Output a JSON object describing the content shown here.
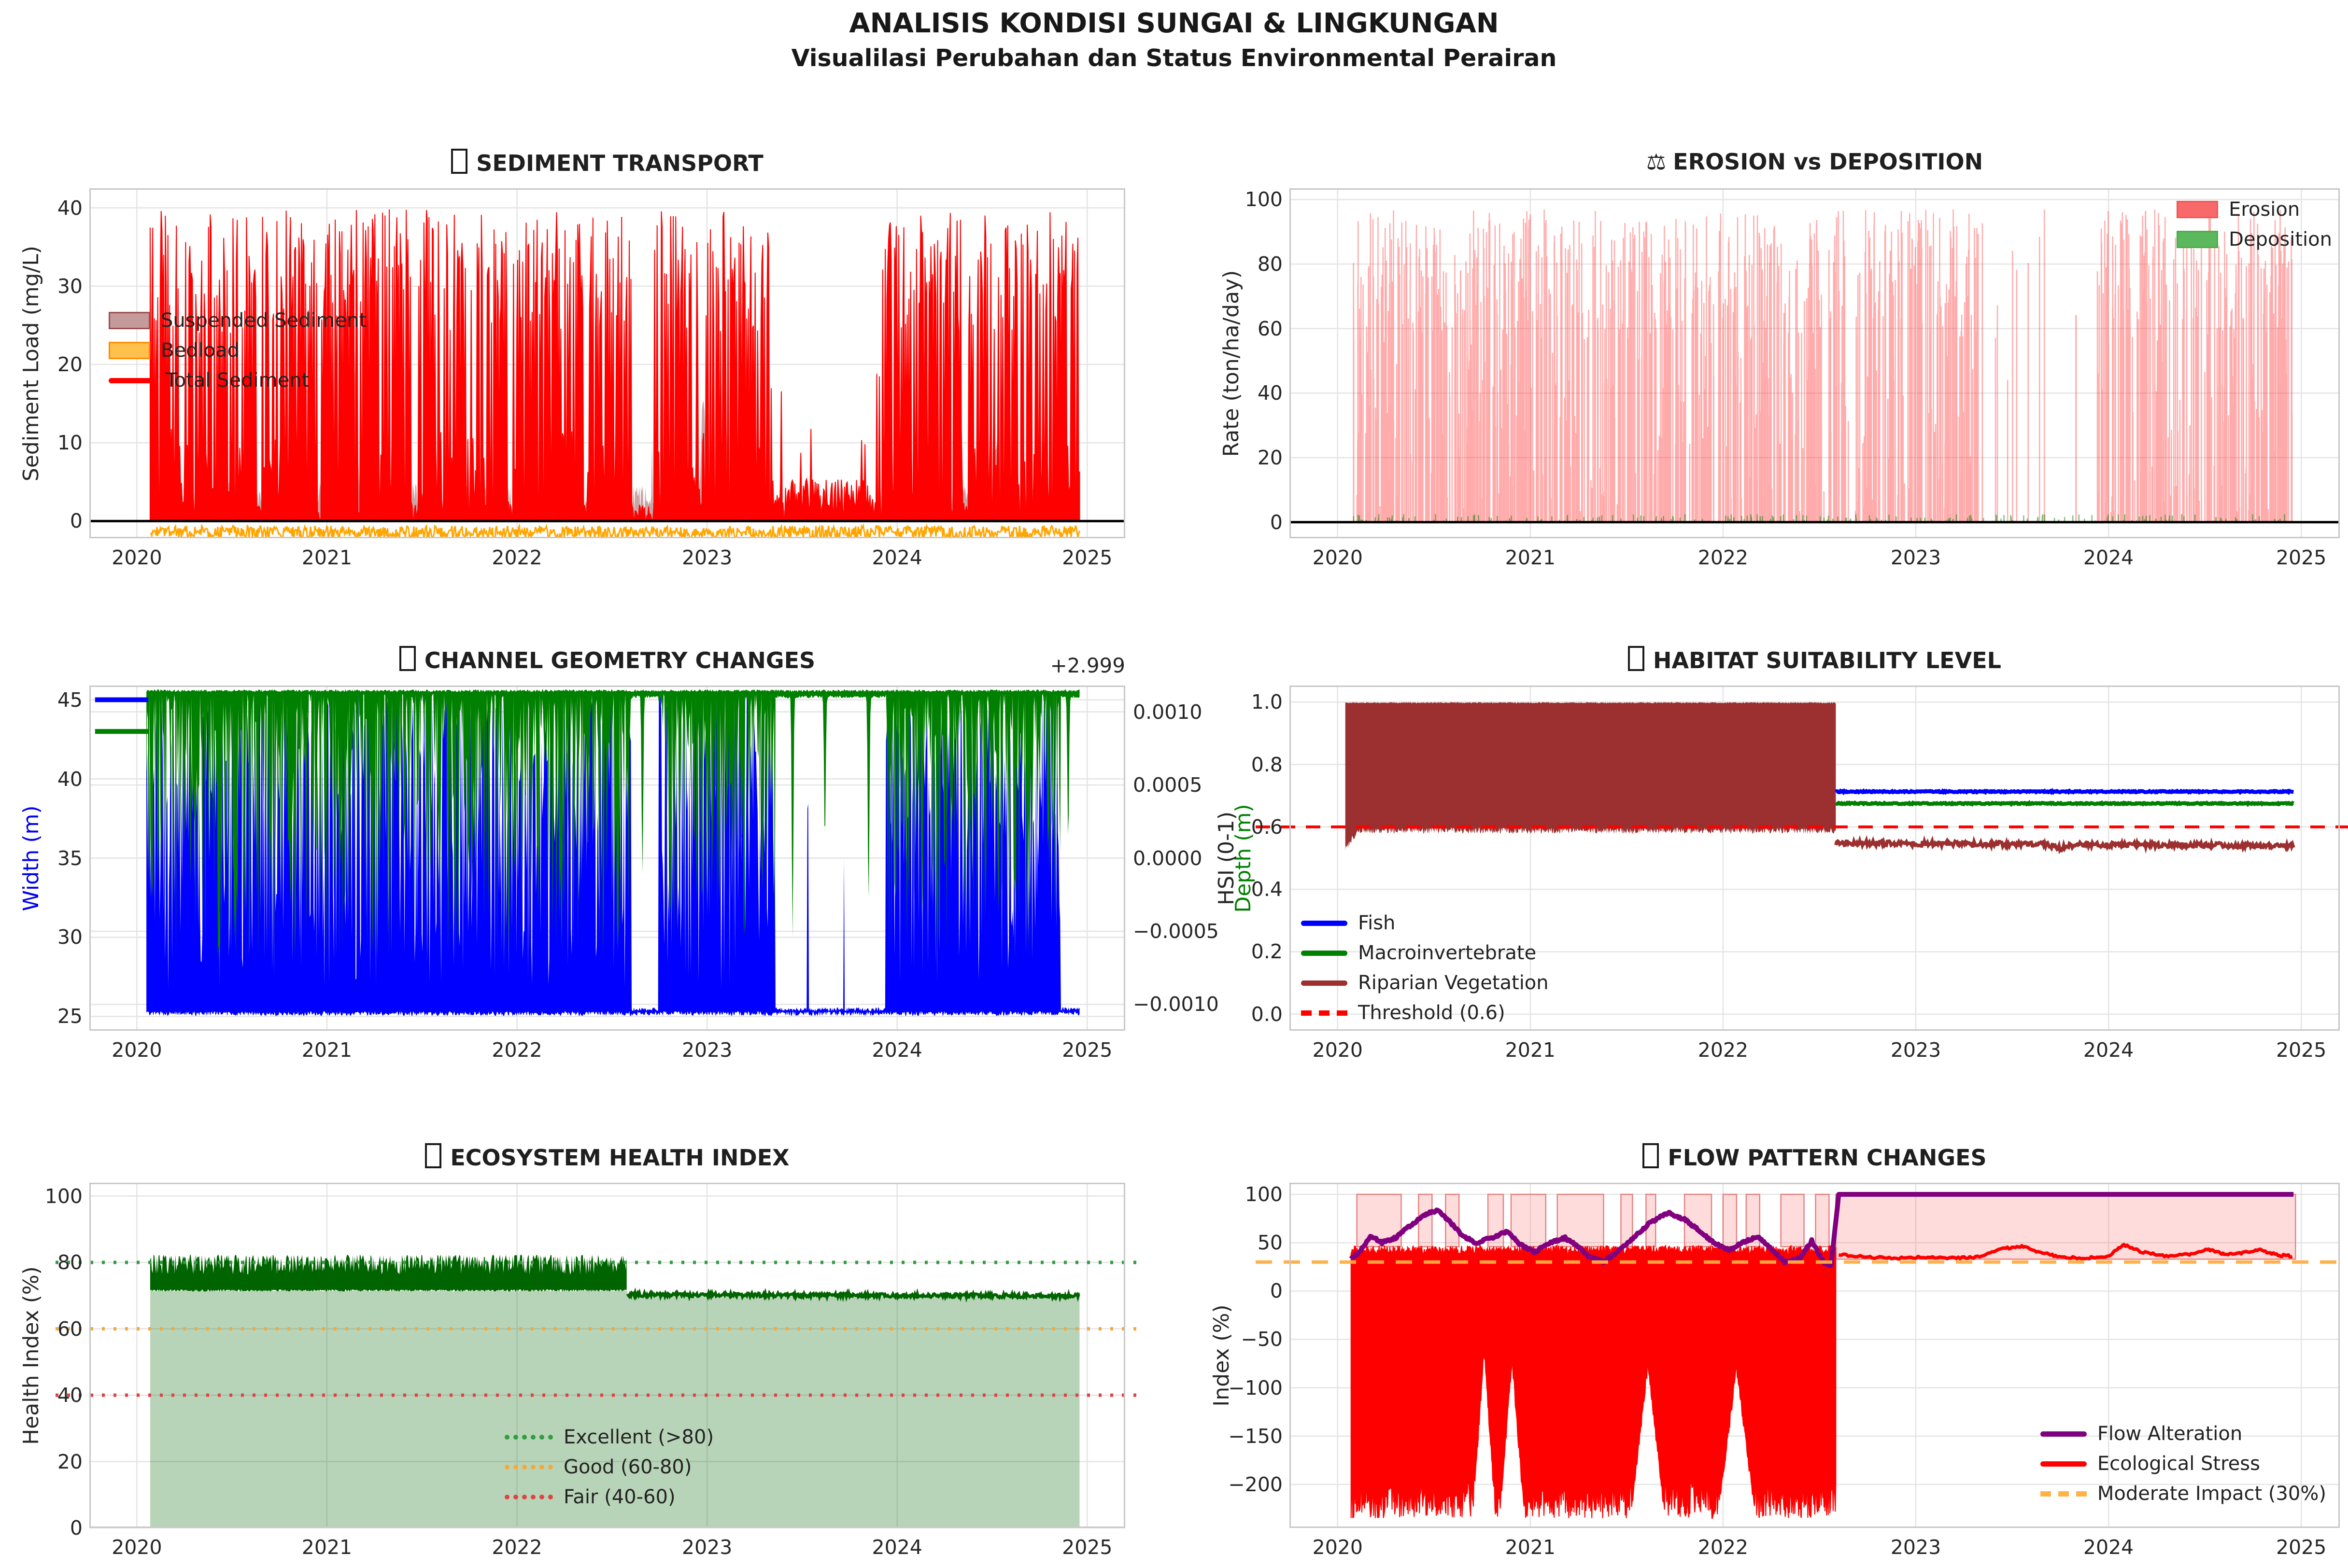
{
  "header": {
    "title": "ANALISIS KONDISI SUNGAI & LINGKUNGAN",
    "subtitle": "Visualilasi Perubahan dan Status Environmental Perairan"
  },
  "colors": {
    "grid": "#e4e4e4",
    "spine": "#c8c8c8",
    "tick_text": "#262626",
    "red": "#ff0000",
    "blue": "#0000ff",
    "green": "#008000",
    "dark_red": "#9c2f2f",
    "dark_green": "#006400",
    "purple": "#800080",
    "orange": "#ffa500",
    "rosybrown": "#bc8f8f",
    "zero_line": "#000000"
  },
  "chart_data": [
    {
      "id": "sediment-transport",
      "type": "area",
      "icon": "missing-glyph-box",
      "title": "SEDIMENT TRANSPORT",
      "ylabel": "Sediment Load (mg/L)",
      "xlim": [
        2019.75,
        2025.2
      ],
      "ylim": [
        -2.2,
        42.5
      ],
      "x_ticks": [
        {
          "v": 2020,
          "label": "2020"
        },
        {
          "v": 2021,
          "label": "2021"
        },
        {
          "v": 2022,
          "label": "2022"
        },
        {
          "v": 2023,
          "label": "2023"
        },
        {
          "v": 2024,
          "label": "2024"
        },
        {
          "v": 2025,
          "label": "2025"
        }
      ],
      "y_ticks": [
        {
          "v": 0,
          "label": "0"
        },
        {
          "v": 10,
          "label": "10"
        },
        {
          "v": 20,
          "label": "20"
        },
        {
          "v": 30,
          "label": "30"
        },
        {
          "v": 40,
          "label": "40"
        }
      ],
      "data_range": [
        2020.07,
        2024.96
      ],
      "quiet_windows": [
        [
          2023.33,
          2023.92
        ]
      ],
      "gap_windows": [
        [
          2020.63,
          2020.66
        ],
        [
          2020.95,
          2020.97
        ],
        [
          2021.45,
          2021.48
        ],
        [
          2021.95,
          2021.98
        ],
        [
          2022.35,
          2022.37
        ],
        [
          2022.6,
          2022.72
        ],
        [
          2024.35,
          2024.37
        ]
      ],
      "zero_line": 0,
      "legend": [
        {
          "label": "Suspended Sediment",
          "type": "patch",
          "color": "#c49a9a",
          "edge": "#99504f"
        },
        {
          "label": "Bedload",
          "type": "patch",
          "color": "#ffc04d",
          "edge": "#ff8c00"
        },
        {
          "label": "Total Sediment",
          "type": "line",
          "color": "#ff0000"
        }
      ],
      "series": [
        {
          "name": "Suspended Sediment",
          "style": "fill",
          "color": "rgba(188,143,143,0.8)",
          "base_range": [
            0,
            5
          ],
          "peaks": [
            [
              2021.15,
              22
            ],
            [
              2022.85,
              16
            ],
            [
              2022.98,
              19
            ],
            [
              2023.1,
              14
            ],
            [
              2024.52,
              12
            ],
            [
              2024.88,
              22
            ]
          ]
        },
        {
          "name": "Bedload",
          "style": "line",
          "color": "#ffa500",
          "value_range": [
            -2.5,
            0.5
          ]
        },
        {
          "name": "Total Sediment",
          "style": "fill",
          "color": "#ff0000",
          "spike_range": [
            24,
            40
          ],
          "low_range": [
            0,
            12
          ],
          "quiet_range": [
            0,
            6
          ],
          "tall_fraction": 0.52
        }
      ]
    },
    {
      "id": "erosion-deposition",
      "type": "vlines",
      "icon": "⚖",
      "title": "EROSION vs DEPOSITION",
      "ylabel": "Rate (ton/ha/day)",
      "xlim": [
        2019.75,
        2025.2
      ],
      "ylim": [
        -5,
        103.5
      ],
      "x_ticks": [
        {
          "v": 2020,
          "label": "2020"
        },
        {
          "v": 2021,
          "label": "2021"
        },
        {
          "v": 2022,
          "label": "2022"
        },
        {
          "v": 2023,
          "label": "2023"
        },
        {
          "v": 2024,
          "label": "2024"
        },
        {
          "v": 2025,
          "label": "2025"
        }
      ],
      "y_ticks": [
        {
          "v": 0,
          "label": "0"
        },
        {
          "v": 20,
          "label": "20"
        },
        {
          "v": 40,
          "label": "40"
        },
        {
          "v": 60,
          "label": "60"
        },
        {
          "v": 80,
          "label": "80"
        },
        {
          "v": 100,
          "label": "100"
        }
      ],
      "data_range": [
        2020.07,
        2024.96
      ],
      "quiet_windows": [
        [
          2023.35,
          2023.93
        ]
      ],
      "zero_line": 0,
      "legend": [
        {
          "label": "Erosion",
          "type": "patch",
          "color": "#f86a6a",
          "edge": "#f25555"
        },
        {
          "label": "Deposition",
          "type": "patch",
          "color": "#5cb85c",
          "edge": "#4cae4c"
        }
      ],
      "series": [
        {
          "name": "Erosion",
          "style": "vlines",
          "color": "rgba(255,45,45,0.40)",
          "height_range": [
            3,
            97
          ],
          "count": 1300
        },
        {
          "name": "Deposition",
          "style": "vlines",
          "color": "rgba(0,128,0,0.5)",
          "height_range": [
            0,
            2.5
          ],
          "count": 260
        }
      ]
    },
    {
      "id": "channel-geometry",
      "type": "area",
      "icon": "missing-glyph-box",
      "title": "CHANNEL GEOMETRY CHANGES",
      "ylabel_left": "Width (m)",
      "ylabel_right": "Depth (m)",
      "offset_text": "+2.999",
      "xlim": [
        2019.75,
        2025.2
      ],
      "ylim": [
        24.1,
        45.9
      ],
      "x_ticks": [
        {
          "v": 2020,
          "label": "2020"
        },
        {
          "v": 2021,
          "label": "2021"
        },
        {
          "v": 2022,
          "label": "2022"
        },
        {
          "v": 2023,
          "label": "2023"
        },
        {
          "v": 2024,
          "label": "2024"
        },
        {
          "v": 2025,
          "label": "2025"
        }
      ],
      "y_ticks": [
        {
          "v": 25,
          "label": "25"
        },
        {
          "v": 30,
          "label": "30"
        },
        {
          "v": 35,
          "label": "35"
        },
        {
          "v": 40,
          "label": "40"
        },
        {
          "v": 45,
          "label": "45"
        }
      ],
      "y_ticks_right": [
        {
          "v": 0.001,
          "label": "0.0010"
        },
        {
          "v": 0.0005,
          "label": "0.0005"
        },
        {
          "v": 0.0,
          "label": "0.0000"
        },
        {
          "v": -0.0005,
          "label": "−0.0005"
        },
        {
          "v": -0.001,
          "label": "−0.0010"
        }
      ],
      "right_axis_halfrange": 0.00118,
      "data_range": [
        2020.05,
        2024.96
      ],
      "quiet_windows": [
        [
          2022.6,
          2022.745
        ],
        [
          2023.36,
          2023.94
        ],
        [
          2024.86,
          2024.97
        ]
      ],
      "initial_flat": {
        "x": [
          2019.78,
          2020.06
        ],
        "width": 45.0,
        "depth_display": 43.0
      },
      "series": [
        {
          "name": "Width",
          "color": "#0000ff",
          "band": [
            25.0,
            45.4
          ],
          "quiet_level": 25.2,
          "quiet_spikes": [
            [
              2023.53,
              43
            ],
            [
              2023.72,
              35
            ]
          ]
        },
        {
          "name": "Depth",
          "color": "#008000",
          "band": [
            27.5,
            45.5
          ],
          "quiet_level": 45.3,
          "quiet_spikes": [
            [
              2022.66,
              34
            ],
            [
              2023.45,
              30
            ],
            [
              2023.62,
              36
            ],
            [
              2023.85,
              32
            ],
            [
              2024.9,
              36
            ]
          ],
          "note": "depth ≈ 2.999 ± 0.001 m on offset axis"
        }
      ]
    },
    {
      "id": "habitat-suitability",
      "type": "line",
      "icon": "missing-glyph-box",
      "title": "HABITAT SUITABILITY LEVEL",
      "ylabel": "HSI (0-1)",
      "xlim": [
        2019.75,
        2025.2
      ],
      "ylim": [
        -0.053,
        1.053
      ],
      "x_ticks": [
        {
          "v": 2020,
          "label": "2020"
        },
        {
          "v": 2021,
          "label": "2021"
        },
        {
          "v": 2022,
          "label": "2022"
        },
        {
          "v": 2023,
          "label": "2023"
        },
        {
          "v": 2024,
          "label": "2024"
        },
        {
          "v": 2025,
          "label": "2025"
        }
      ],
      "y_ticks": [
        {
          "v": 0,
          "label": "0.0"
        },
        {
          "v": 0.2,
          "label": "0.2"
        },
        {
          "v": 0.4,
          "label": "0.4"
        },
        {
          "v": 0.6,
          "label": "0.6"
        },
        {
          "v": 0.8,
          "label": "0.8"
        },
        {
          "v": 1.0,
          "label": "1.0"
        }
      ],
      "data_range": [
        2020.04,
        2024.96
      ],
      "transition": 2022.585,
      "threshold": 0.6,
      "legend": [
        {
          "label": "Fish",
          "type": "line",
          "color": "#0000ff"
        },
        {
          "label": "Macroinvertebrate",
          "type": "line",
          "color": "#008000"
        },
        {
          "label": "Riparian Vegetation",
          "type": "line",
          "color": "#9c2f2f"
        },
        {
          "label": "Threshold (0.6)",
          "type": "dash",
          "color": "#ff0000"
        }
      ],
      "series": [
        {
          "name": "Fish",
          "color": "#0000ff",
          "post_value": 0.713
        },
        {
          "name": "Macroinvertebrate",
          "color": "#008000",
          "post_value": 0.675
        },
        {
          "name": "Riparian Vegetation",
          "color": "#9c2f2f",
          "pre_band": [
            0.58,
            1.0
          ],
          "post_value": 0.548,
          "post_trend": -0.004
        }
      ]
    },
    {
      "id": "ecosystem-health",
      "type": "area",
      "icon": "missing-glyph-box",
      "title": "ECOSYSTEM HEALTH INDEX",
      "ylabel": "Health Index (%)",
      "xlim": [
        2019.75,
        2025.2
      ],
      "ylim": [
        0,
        104
      ],
      "x_ticks": [
        {
          "v": 2020,
          "label": "2020"
        },
        {
          "v": 2021,
          "label": "2021"
        },
        {
          "v": 2022,
          "label": "2022"
        },
        {
          "v": 2023,
          "label": "2023"
        },
        {
          "v": 2024,
          "label": "2024"
        },
        {
          "v": 2025,
          "label": "2025"
        }
      ],
      "y_ticks": [
        {
          "v": 0,
          "label": "0"
        },
        {
          "v": 20,
          "label": "20"
        },
        {
          "v": 40,
          "label": "40"
        },
        {
          "v": 60,
          "label": "60"
        },
        {
          "v": 80,
          "label": "80"
        },
        {
          "v": 100,
          "label": "100"
        }
      ],
      "data_range": [
        2020.07,
        2024.96
      ],
      "transition": 2022.58,
      "pre_band": [
        71.2,
        82.3
      ],
      "post_value": 70,
      "line_color": "#006400",
      "fill_color": "rgba(0,100,0,0.28)",
      "legend": [
        {
          "label": "Excellent (>80)",
          "type": "dot",
          "color": "#2e9e3e"
        },
        {
          "label": "Good (60-80)",
          "type": "dot",
          "color": "#f5a93d"
        },
        {
          "label": "Fair (40-60)",
          "type": "dot",
          "color": "#e04343"
        }
      ],
      "guides": [
        {
          "v": 80,
          "color": "#2e9e3e"
        },
        {
          "v": 60,
          "color": "#f5a93d"
        },
        {
          "v": 40,
          "color": "#e04343"
        }
      ]
    },
    {
      "id": "flow-pattern",
      "type": "line",
      "icon": "missing-glyph-box",
      "title": "FLOW PATTERN CHANGES",
      "ylabel": "Index (%)",
      "xlim": [
        2019.75,
        2025.2
      ],
      "ylim": [
        -245,
        112
      ],
      "x_ticks": [
        {
          "v": 2020,
          "label": "2020"
        },
        {
          "v": 2021,
          "label": "2021"
        },
        {
          "v": 2022,
          "label": "2022"
        },
        {
          "v": 2023,
          "label": "2023"
        },
        {
          "v": 2024,
          "label": "2024"
        },
        {
          "v": 2025,
          "label": "2025"
        }
      ],
      "y_ticks": [
        {
          "v": 100,
          "label": "100"
        },
        {
          "v": 50,
          "label": "50"
        },
        {
          "v": 0,
          "label": "0"
        },
        {
          "v": -50,
          "label": "−50"
        },
        {
          "v": -100,
          "label": "−100"
        },
        {
          "v": -150,
          "label": "−150"
        },
        {
          "v": -200,
          "label": "−200"
        }
      ],
      "data_range": [
        2020.07,
        2024.96
      ],
      "transition": 2022.585,
      "impact_value": 30,
      "spans_pre": [
        [
          2020.1,
          2020.33
        ],
        [
          2020.42,
          2020.49
        ],
        [
          2020.56,
          2020.63
        ],
        [
          2020.78,
          2020.86
        ],
        [
          2020.9,
          2021.08
        ],
        [
          2021.14,
          2021.38
        ],
        [
          2021.47,
          2021.53
        ],
        [
          2021.6,
          2021.65
        ],
        [
          2021.8,
          2021.94
        ],
        [
          2022.0,
          2022.07
        ],
        [
          2022.12,
          2022.19
        ],
        [
          2022.3,
          2022.42
        ],
        [
          2022.48,
          2022.55
        ]
      ],
      "span_pre_bottom": 46,
      "span_post": [
        2022.585,
        2024.97
      ],
      "span_post_bottom": 33,
      "alteration_points": [
        [
          2020.07,
          33
        ],
        [
          2020.12,
          42
        ],
        [
          2020.17,
          57
        ],
        [
          2020.23,
          50
        ],
        [
          2020.3,
          55
        ],
        [
          2020.38,
          68
        ],
        [
          2020.46,
          80
        ],
        [
          2020.52,
          83
        ],
        [
          2020.58,
          72
        ],
        [
          2020.65,
          57
        ],
        [
          2020.72,
          50
        ],
        [
          2020.8,
          55
        ],
        [
          2020.88,
          62
        ],
        [
          2020.95,
          48
        ],
        [
          2021.02,
          40
        ],
        [
          2021.1,
          50
        ],
        [
          2021.18,
          55
        ],
        [
          2021.24,
          47
        ],
        [
          2021.3,
          36
        ],
        [
          2021.38,
          30
        ],
        [
          2021.46,
          42
        ],
        [
          2021.55,
          58
        ],
        [
          2021.63,
          72
        ],
        [
          2021.72,
          81
        ],
        [
          2021.8,
          74
        ],
        [
          2021.88,
          62
        ],
        [
          2021.95,
          50
        ],
        [
          2022.03,
          42
        ],
        [
          2022.1,
          50
        ],
        [
          2022.18,
          56
        ],
        [
          2022.25,
          44
        ],
        [
          2022.32,
          30
        ],
        [
          2022.4,
          34
        ],
        [
          2022.46,
          52
        ],
        [
          2022.52,
          30
        ],
        [
          2022.56,
          26
        ],
        [
          2022.6,
          100
        ],
        [
          2024.96,
          100
        ]
      ],
      "stress_pre": {
        "top": [
          38,
          47
        ],
        "bottom": [
          -235,
          -195
        ],
        "teeth": [
          [
            2020.7,
            2020.82,
            -60
          ],
          [
            2020.84,
            2020.97,
            -70
          ],
          [
            2021.52,
            2021.7,
            -75
          ],
          [
            2021.97,
            2022.17,
            -80
          ]
        ]
      },
      "stress_post_points": [
        [
          2022.6,
          38
        ],
        [
          2022.75,
          35
        ],
        [
          2022.9,
          34
        ],
        [
          2023.05,
          35
        ],
        [
          2023.2,
          34
        ],
        [
          2023.32,
          35
        ],
        [
          2023.45,
          44
        ],
        [
          2023.55,
          46
        ],
        [
          2023.65,
          40
        ],
        [
          2023.75,
          35
        ],
        [
          2023.88,
          34
        ],
        [
          2024.0,
          36
        ],
        [
          2024.08,
          48
        ],
        [
          2024.18,
          40
        ],
        [
          2024.3,
          36
        ],
        [
          2024.42,
          38
        ],
        [
          2024.52,
          43
        ],
        [
          2024.6,
          38
        ],
        [
          2024.68,
          39
        ],
        [
          2024.78,
          43
        ],
        [
          2024.88,
          37
        ],
        [
          2024.96,
          36
        ]
      ],
      "legend": [
        {
          "label": "Flow Alteration",
          "type": "line",
          "color": "#800080"
        },
        {
          "label": "Ecological Stress",
          "type": "line",
          "color": "#ff0000"
        },
        {
          "label": "Moderate Impact (30%)",
          "type": "dash",
          "color": "#ffb347"
        }
      ]
    }
  ]
}
